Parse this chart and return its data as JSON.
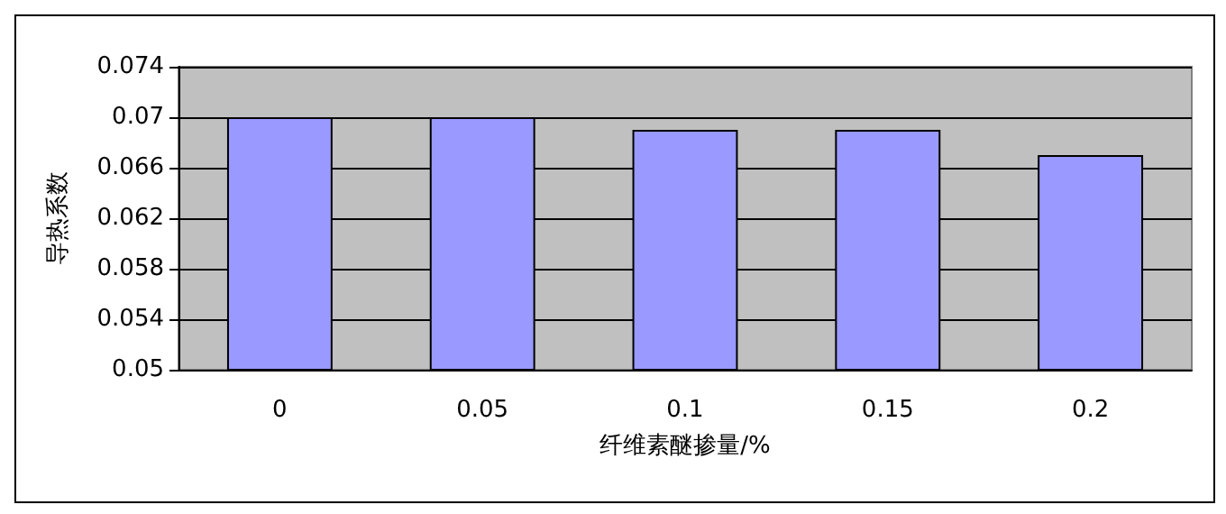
{
  "chart_data": {
    "type": "bar",
    "xlabel": "纤维素醚掺量/%",
    "ylabel": "导热系数",
    "categories": [
      "0",
      "0.05",
      "0.1",
      "0.15",
      "0.2"
    ],
    "values": [
      0.07,
      0.07,
      0.069,
      0.069,
      0.067
    ],
    "color": "#9999ff",
    "ylim": [
      0.05,
      0.074
    ],
    "yticks": [
      0.05,
      0.054,
      0.058,
      0.062,
      0.066,
      0.07,
      0.074
    ],
    "grid": "y"
  }
}
